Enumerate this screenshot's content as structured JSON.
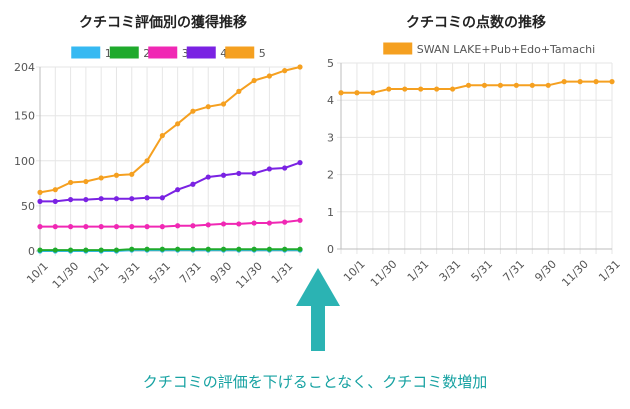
{
  "caption": "クチコミの評価を下げることなく、クチコミ数増加",
  "colors": {
    "arrow": "#2bb3b3",
    "caption": "#17a2a2"
  },
  "chart_data": [
    {
      "type": "line",
      "title": "クチコミ評価別の獲得推移",
      "xlabel": "",
      "ylabel": "",
      "x": [
        "10/1",
        "",
        "11/30",
        "",
        "1/31",
        "",
        "3/31",
        "",
        "5/31",
        "",
        "7/31",
        "",
        "9/30",
        "",
        "11/30",
        "",
        "1/31",
        ""
      ],
      "ylim": [
        0,
        204
      ],
      "yticks": [
        0,
        50,
        100,
        150,
        204
      ],
      "legend_position": "top",
      "series": [
        {
          "name": "1",
          "color": "#36b9f2",
          "values": [
            0,
            0,
            0,
            0,
            0,
            0,
            1,
            1,
            1,
            1,
            1,
            1,
            1,
            1,
            1,
            1,
            1,
            1
          ]
        },
        {
          "name": "2",
          "color": "#1faa2c",
          "values": [
            1,
            1,
            1,
            1,
            1,
            1,
            2,
            2,
            2,
            2,
            2,
            2,
            2,
            2,
            2,
            2,
            2,
            2
          ]
        },
        {
          "name": "3",
          "color": "#f028b4",
          "values": [
            27,
            27,
            27,
            27,
            27,
            27,
            27,
            27,
            27,
            28,
            28,
            29,
            30,
            30,
            31,
            31,
            32,
            34
          ]
        },
        {
          "name": "4",
          "color": "#7a22e3",
          "values": [
            55,
            55,
            57,
            57,
            58,
            58,
            58,
            59,
            59,
            68,
            74,
            82,
            84,
            86,
            86,
            91,
            92,
            98
          ]
        },
        {
          "name": "5",
          "color": "#f5a020",
          "values": [
            65,
            68,
            76,
            77,
            81,
            84,
            85,
            100,
            128,
            141,
            155,
            160,
            163,
            177,
            189,
            194,
            200,
            204
          ]
        }
      ]
    },
    {
      "type": "line",
      "title": "クチコミの点数の推移",
      "xlabel": "",
      "ylabel": "",
      "x": [
        "",
        "10/1",
        "",
        "11/30",
        "",
        "1/31",
        "",
        "3/31",
        "",
        "5/31",
        "",
        "7/31",
        "",
        "9/30",
        "",
        "11/30",
        "",
        "1/31"
      ],
      "ylim": [
        0,
        5
      ],
      "yticks": [
        0,
        1,
        2,
        3,
        4,
        5
      ],
      "legend_position": "top",
      "series": [
        {
          "name": "SWAN LAKE+Pub+Edo+Tamachi",
          "color": "#f5a020",
          "values": [
            4.2,
            4.2,
            4.2,
            4.3,
            4.3,
            4.3,
            4.3,
            4.3,
            4.4,
            4.4,
            4.4,
            4.4,
            4.4,
            4.4,
            4.5,
            4.5,
            4.5,
            4.5
          ]
        }
      ]
    }
  ]
}
